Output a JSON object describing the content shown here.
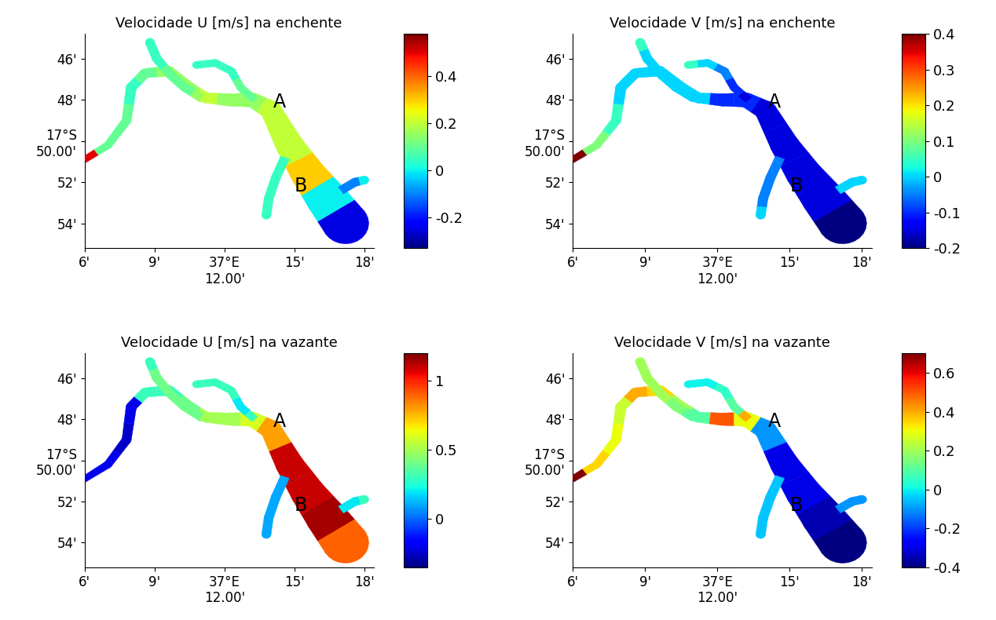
{
  "chart_data": [
    {
      "type": "map",
      "title": "Velocidade U [m/s] na enchente",
      "xlim": [
        6,
        18.4
      ],
      "ylim": [
        55.2,
        44.8
      ],
      "xticks": [
        {
          "value": 6,
          "label": "6'"
        },
        {
          "value": 9,
          "label": "9'"
        },
        {
          "value": 12,
          "label": "37°E\n12.00'"
        },
        {
          "value": 15,
          "label": "15'"
        },
        {
          "value": 18,
          "label": "18'"
        }
      ],
      "yticks": [
        {
          "value": 46,
          "label": "46'"
        },
        {
          "value": 48,
          "label": "48'"
        },
        {
          "value": 50,
          "label": "17°S\n50.00'"
        },
        {
          "value": 52,
          "label": "52'"
        },
        {
          "value": 54,
          "label": "54'"
        }
      ],
      "colorbar": {
        "lim": [
          -0.33,
          0.58
        ],
        "ticks": [
          -0.2,
          0,
          0.2,
          0.4
        ]
      },
      "points": [
        {
          "text": "A",
          "x": 14.1,
          "y": 48.1
        },
        {
          "text": "B",
          "x": 15.0,
          "y": 52.2
        }
      ],
      "channels": [
        {
          "x": [
            6.0,
            7.0,
            7.8,
            8.0,
            8.6,
            9.6,
            10.5,
            11.2,
            12.2,
            13.2,
            14.0,
            14.8,
            15.6,
            16.4,
            17.2
          ],
          "y": [
            50.9,
            50.2,
            49.0,
            47.4,
            46.7,
            46.6,
            47.4,
            47.9,
            48.0,
            48.0,
            48.5,
            50.2,
            51.6,
            52.8,
            54.0
          ],
          "width": [
            0.3,
            0.35,
            0.4,
            0.45,
            0.45,
            0.5,
            0.5,
            0.5,
            0.6,
            0.7,
            0.9,
            1.2,
            1.5,
            1.8,
            2.0
          ],
          "values": [
            0.5,
            0.1,
            0.1,
            0.05,
            0.1,
            0.15,
            0.15,
            0.2,
            0.15,
            0.15,
            0.2,
            0.2,
            0.3,
            0.0,
            -0.25
          ]
        },
        {
          "x": [
            8.8,
            9.1,
            9.7,
            10.3,
            11.0
          ],
          "y": [
            45.2,
            46.0,
            46.8,
            47.4,
            47.9
          ],
          "width": [
            0.4,
            0.4,
            0.4,
            0.4,
            0.4
          ],
          "values": [
            0.05,
            0.05,
            0.1,
            0.1,
            0.15
          ]
        },
        {
          "x": [
            10.8,
            11.6,
            12.3,
            12.7,
            13.3
          ],
          "y": [
            46.3,
            46.2,
            46.6,
            47.4,
            48.0
          ],
          "width": [
            0.35,
            0.35,
            0.35,
            0.35,
            0.35
          ],
          "values": [
            0.05,
            0.05,
            0.05,
            0.1,
            0.1
          ]
        },
        {
          "x": [
            14.6,
            14.2,
            13.9,
            13.8
          ],
          "y": [
            50.8,
            51.8,
            52.8,
            53.6
          ],
          "width": [
            0.4,
            0.4,
            0.4,
            0.4
          ],
          "values": [
            0.05,
            0.05,
            0.05,
            0.05
          ]
        },
        {
          "x": [
            17.0,
            17.6,
            18.0
          ],
          "y": [
            52.4,
            52.0,
            51.9
          ],
          "width": [
            0.4,
            0.4,
            0.4
          ],
          "values": [
            -0.1,
            -0.1,
            0.0
          ]
        }
      ]
    },
    {
      "type": "map",
      "title": "Velocidade V [m/s] na enchente",
      "xlim": [
        6,
        18.4
      ],
      "ylim": [
        55.2,
        44.8
      ],
      "xticks": [
        {
          "value": 6,
          "label": "6'"
        },
        {
          "value": 9,
          "label": "9'"
        },
        {
          "value": 12,
          "label": "37°E\n12.00'"
        },
        {
          "value": 15,
          "label": "15'"
        },
        {
          "value": 18,
          "label": "18'"
        }
      ],
      "yticks": [
        {
          "value": 46,
          "label": "46'"
        },
        {
          "value": 48,
          "label": "48'"
        },
        {
          "value": 50,
          "label": "17°S\n50.00'"
        },
        {
          "value": 52,
          "label": "52'"
        },
        {
          "value": 54,
          "label": "54'"
        }
      ],
      "colorbar": {
        "lim": [
          -0.2,
          0.4
        ],
        "ticks": [
          -0.2,
          -0.1,
          0,
          0.1,
          0.2,
          0.3,
          0.4
        ]
      },
      "points": [
        {
          "text": "A",
          "x": 14.1,
          "y": 48.1
        },
        {
          "text": "B",
          "x": 15.0,
          "y": 52.2
        }
      ],
      "channels": [
        {
          "x": [
            6.0,
            7.0,
            7.8,
            8.0,
            8.6,
            9.6,
            10.5,
            11.2,
            12.2,
            13.2,
            14.0,
            14.8,
            15.6,
            16.4,
            17.2
          ],
          "y": [
            50.9,
            50.2,
            49.0,
            47.4,
            46.7,
            46.6,
            47.4,
            47.9,
            48.0,
            48.0,
            48.5,
            50.2,
            51.6,
            52.8,
            54.0
          ],
          "width": [
            0.3,
            0.35,
            0.4,
            0.45,
            0.45,
            0.5,
            0.5,
            0.5,
            0.6,
            0.7,
            0.9,
            1.2,
            1.5,
            1.8,
            2.0
          ],
          "values": [
            0.4,
            0.1,
            0.05,
            0.0,
            0.0,
            0.0,
            0.0,
            0.0,
            -0.1,
            -0.1,
            -0.15,
            -0.15,
            -0.15,
            -0.15,
            -0.2
          ]
        },
        {
          "x": [
            8.8,
            9.1,
            9.7,
            10.3,
            11.0
          ],
          "y": [
            45.2,
            46.0,
            46.8,
            47.4,
            47.9
          ],
          "width": [
            0.4,
            0.4,
            0.4,
            0.4,
            0.4
          ],
          "values": [
            0.05,
            0.0,
            0.0,
            0.0,
            0.0
          ]
        },
        {
          "x": [
            10.8,
            11.6,
            12.3,
            12.7,
            13.3
          ],
          "y": [
            46.3,
            46.2,
            46.6,
            47.4,
            48.0
          ],
          "width": [
            0.35,
            0.35,
            0.35,
            0.35,
            0.35
          ],
          "values": [
            0.05,
            0.0,
            -0.05,
            -0.1,
            -0.15
          ]
        },
        {
          "x": [
            14.6,
            14.2,
            13.9,
            13.8
          ],
          "y": [
            50.8,
            51.8,
            52.8,
            53.6
          ],
          "width": [
            0.4,
            0.4,
            0.4,
            0.4
          ],
          "values": [
            -0.05,
            -0.05,
            -0.05,
            0.0
          ]
        },
        {
          "x": [
            17.0,
            17.6,
            18.0
          ],
          "y": [
            52.4,
            52.0,
            51.9
          ],
          "width": [
            0.4,
            0.4,
            0.4
          ],
          "values": [
            0.0,
            0.0,
            0.0
          ]
        }
      ]
    },
    {
      "type": "map",
      "title": "Velocidade U [m/s] na vazante",
      "xlim": [
        6,
        18.4
      ],
      "ylim": [
        55.2,
        44.8
      ],
      "xticks": [
        {
          "value": 6,
          "label": "6'"
        },
        {
          "value": 9,
          "label": "9'"
        },
        {
          "value": 12,
          "label": "37°E\n12.00'"
        },
        {
          "value": 15,
          "label": "15'"
        },
        {
          "value": 18,
          "label": "18'"
        }
      ],
      "yticks": [
        {
          "value": 46,
          "label": "46'"
        },
        {
          "value": 48,
          "label": "48'"
        },
        {
          "value": 50,
          "label": "17°S\n50.00'"
        },
        {
          "value": 52,
          "label": "52'"
        },
        {
          "value": 54,
          "label": "54'"
        }
      ],
      "colorbar": {
        "lim": [
          -0.35,
          1.2
        ],
        "ticks": [
          0,
          0.5,
          1
        ]
      },
      "points": [
        {
          "text": "A",
          "x": 14.1,
          "y": 48.1
        },
        {
          "text": "B",
          "x": 15.0,
          "y": 52.2
        }
      ],
      "channels": [
        {
          "x": [
            6.0,
            7.0,
            7.8,
            8.0,
            8.6,
            9.6,
            10.5,
            11.2,
            12.2,
            13.2,
            14.0,
            14.8,
            15.6,
            16.4,
            17.2
          ],
          "y": [
            50.9,
            50.2,
            49.0,
            47.4,
            46.7,
            46.6,
            47.4,
            47.9,
            48.0,
            48.0,
            48.5,
            50.2,
            51.6,
            52.8,
            54.0
          ],
          "width": [
            0.3,
            0.35,
            0.4,
            0.45,
            0.45,
            0.5,
            0.5,
            0.5,
            0.6,
            0.7,
            0.9,
            1.2,
            1.5,
            1.8,
            2.0
          ],
          "values": [
            -0.2,
            -0.2,
            -0.25,
            -0.2,
            0.3,
            0.3,
            0.4,
            0.5,
            0.5,
            0.6,
            0.8,
            1.1,
            1.1,
            1.15,
            0.9
          ]
        },
        {
          "x": [
            8.8,
            9.1,
            9.7,
            10.3,
            11.0
          ],
          "y": [
            45.2,
            46.0,
            46.8,
            47.4,
            47.9
          ],
          "width": [
            0.4,
            0.4,
            0.4,
            0.4,
            0.4
          ],
          "values": [
            0.3,
            0.4,
            0.4,
            0.4,
            0.4
          ]
        },
        {
          "x": [
            10.8,
            11.6,
            12.3,
            12.7,
            13.3
          ],
          "y": [
            46.3,
            46.2,
            46.6,
            47.4,
            48.0
          ],
          "width": [
            0.35,
            0.35,
            0.35,
            0.35,
            0.35
          ],
          "values": [
            0.3,
            0.3,
            0.3,
            0.2,
            0.3
          ]
        },
        {
          "x": [
            14.6,
            14.2,
            13.9,
            13.8
          ],
          "y": [
            50.8,
            51.8,
            52.8,
            53.6
          ],
          "width": [
            0.4,
            0.4,
            0.4,
            0.4
          ],
          "values": [
            0.1,
            0.1,
            0.1,
            0.1
          ]
        },
        {
          "x": [
            17.0,
            17.6,
            18.0
          ],
          "y": [
            52.4,
            52.0,
            51.9
          ],
          "width": [
            0.4,
            0.4,
            0.4
          ],
          "values": [
            0.2,
            0.2,
            0.3
          ]
        }
      ]
    },
    {
      "type": "map",
      "title": "Velocidade V [m/s] na vazante",
      "xlim": [
        6,
        18.4
      ],
      "ylim": [
        55.2,
        44.8
      ],
      "xticks": [
        {
          "value": 6,
          "label": "6'"
        },
        {
          "value": 9,
          "label": "9'"
        },
        {
          "value": 12,
          "label": "37°E\n12.00'"
        },
        {
          "value": 15,
          "label": "15'"
        },
        {
          "value": 18,
          "label": "18'"
        }
      ],
      "yticks": [
        {
          "value": 46,
          "label": "46'"
        },
        {
          "value": 48,
          "label": "48'"
        },
        {
          "value": 50,
          "label": "17°S\n50.00'"
        },
        {
          "value": 52,
          "label": "52'"
        },
        {
          "value": 54,
          "label": "54'"
        }
      ],
      "colorbar": {
        "lim": [
          -0.4,
          0.7
        ],
        "ticks": [
          -0.4,
          -0.2,
          0,
          0.2,
          0.4,
          0.6
        ]
      },
      "points": [
        {
          "text": "A",
          "x": 14.1,
          "y": 48.1
        },
        {
          "text": "B",
          "x": 15.0,
          "y": 52.2
        }
      ],
      "channels": [
        {
          "x": [
            6.0,
            7.0,
            7.8,
            8.0,
            8.6,
            9.6,
            10.5,
            11.2,
            12.2,
            13.2,
            14.0,
            14.8,
            15.6,
            16.4,
            17.2
          ],
          "y": [
            50.9,
            50.2,
            49.0,
            47.4,
            46.7,
            46.6,
            47.4,
            47.9,
            48.0,
            48.0,
            48.5,
            50.2,
            51.6,
            52.8,
            54.0
          ],
          "width": [
            0.3,
            0.35,
            0.4,
            0.45,
            0.45,
            0.5,
            0.5,
            0.5,
            0.6,
            0.7,
            0.9,
            1.2,
            1.5,
            1.8,
            2.0
          ],
          "values": [
            0.7,
            0.35,
            0.3,
            0.25,
            0.4,
            0.35,
            0.2,
            0.1,
            0.5,
            0.3,
            -0.1,
            -0.3,
            -0.3,
            -0.35,
            -0.4
          ]
        },
        {
          "x": [
            8.8,
            9.1,
            9.7,
            10.3,
            11.0
          ],
          "y": [
            45.2,
            46.0,
            46.8,
            47.4,
            47.9
          ],
          "width": [
            0.4,
            0.4,
            0.4,
            0.4,
            0.4
          ],
          "values": [
            0.2,
            0.2,
            0.2,
            0.15,
            0.1
          ]
        },
        {
          "x": [
            10.8,
            11.6,
            12.3,
            12.7,
            13.3
          ],
          "y": [
            46.3,
            46.2,
            46.6,
            47.4,
            48.0
          ],
          "width": [
            0.35,
            0.35,
            0.35,
            0.35,
            0.35
          ],
          "values": [
            0.0,
            0.0,
            0.05,
            0.1,
            0.4
          ]
        },
        {
          "x": [
            14.6,
            14.2,
            13.9,
            13.8
          ],
          "y": [
            50.8,
            51.8,
            52.8,
            53.6
          ],
          "width": [
            0.4,
            0.4,
            0.4,
            0.4
          ],
          "values": [
            -0.05,
            -0.05,
            -0.05,
            -0.05
          ]
        },
        {
          "x": [
            17.0,
            17.6,
            18.0
          ],
          "y": [
            52.4,
            52.0,
            51.9
          ],
          "width": [
            0.4,
            0.4,
            0.4
          ],
          "values": [
            -0.1,
            -0.1,
            -0.1
          ]
        }
      ]
    }
  ]
}
